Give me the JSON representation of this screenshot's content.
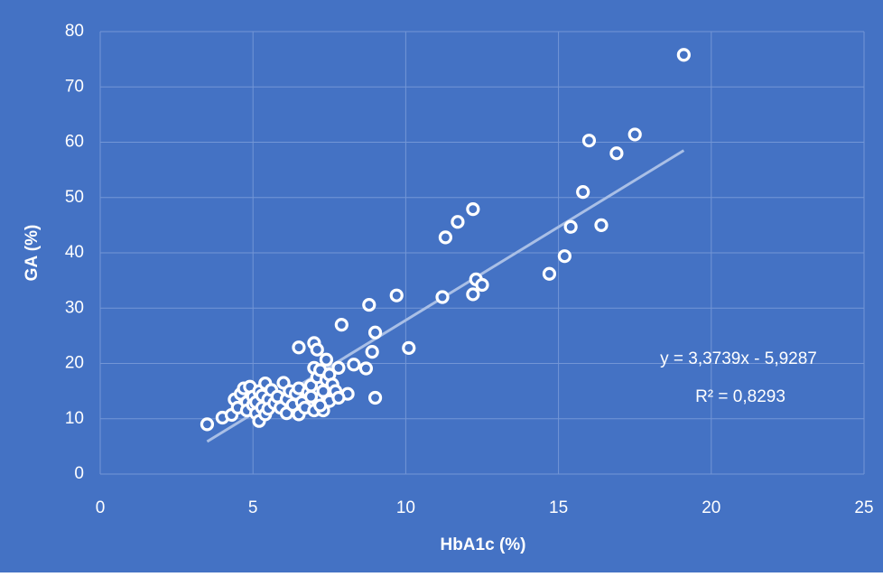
{
  "chart_data": {
    "type": "scatter",
    "x_label": "HbA1c (%)",
    "y_label": "GA (%)",
    "xlim": [
      0,
      25
    ],
    "xticks": [
      0,
      5,
      10,
      15,
      20,
      25
    ],
    "ylim": [
      0,
      80
    ],
    "yticks": [
      0,
      10,
      20,
      30,
      40,
      50,
      60,
      70,
      80
    ],
    "grid": true,
    "color": "#ffffff",
    "background": "#4472c4",
    "x": [
      19.1,
      17.5,
      16.0,
      16.9,
      15.8,
      15.4,
      16.4,
      15.2,
      14.7,
      12.2,
      11.7,
      11.3,
      12.3,
      12.5,
      12.2,
      11.2,
      9.7,
      8.8,
      9.0,
      7.9,
      8.9,
      10.1,
      9.0,
      8.7,
      7.0,
      6.5,
      7.1,
      7.4,
      8.3,
      7.8,
      8.1,
      3.5,
      4.0,
      4.3,
      4.4,
      4.5,
      4.6,
      4.7,
      4.8,
      4.8,
      4.9,
      5.0,
      5.0,
      5.1,
      5.1,
      5.2,
      5.2,
      5.3,
      5.3,
      5.4,
      5.4,
      5.5,
      5.5,
      5.6,
      5.7,
      5.8,
      5.9,
      6.0,
      6.1,
      6.1,
      6.2,
      6.3,
      6.4,
      6.5,
      6.5,
      6.6,
      6.7,
      6.8,
      6.9,
      7.0,
      7.0,
      7.1,
      7.1,
      7.2,
      7.3,
      7.3,
      7.4,
      7.5,
      7.5,
      7.6,
      7.7,
      7.8,
      7.2,
      6.9
    ],
    "values": [
      75.8,
      61.4,
      60.3,
      58.0,
      51.0,
      44.7,
      45.0,
      39.4,
      36.2,
      47.9,
      45.6,
      42.8,
      35.2,
      34.2,
      32.5,
      32.0,
      32.3,
      30.6,
      25.6,
      27.0,
      22.1,
      22.8,
      13.8,
      19.1,
      23.7,
      22.9,
      22.5,
      20.7,
      19.8,
      19.2,
      14.5,
      9.0,
      10.2,
      10.7,
      13.5,
      12.0,
      14.5,
      15.5,
      13.0,
      11.5,
      15.8,
      12.5,
      14.0,
      13.0,
      11.0,
      9.6,
      15.0,
      12.0,
      14.2,
      16.4,
      10.8,
      13.5,
      11.8,
      15.2,
      12.8,
      14.0,
      12.0,
      16.5,
      13.5,
      11.0,
      15.0,
      12.5,
      14.5,
      10.8,
      15.5,
      13.0,
      12.0,
      14.8,
      16.0,
      19.2,
      11.5,
      17.5,
      13.5,
      18.8,
      15.0,
      11.5,
      17.0,
      13.2,
      18.0,
      16.2,
      15.0,
      13.8,
      12.4,
      14.0
    ],
    "trendline": {
      "x": [
        3.5,
        19.1
      ],
      "slope": 3.3739,
      "intercept": -5.9287,
      "color": "#a9bfe6"
    },
    "annotations": [
      "y = 3,3739x - 5,9287",
      "R² = 0,8293"
    ]
  }
}
